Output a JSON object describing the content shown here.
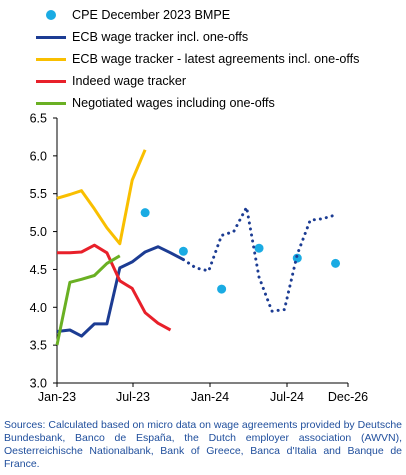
{
  "chart_data": {
    "type": "line",
    "title": "",
    "xlabel": "",
    "ylabel": "",
    "ylim": [
      3.0,
      6.5
    ],
    "yticks": [
      "3.0",
      "3.5",
      "4.0",
      "4.5",
      "5.0",
      "5.5",
      "6.0",
      "6.5"
    ],
    "xticks": [
      "Jan-23",
      "Jul-23",
      "Jan-24",
      "Jul-24",
      "Dec-26"
    ],
    "grid": false,
    "legend_position": "top",
    "series": [
      {
        "name": "CPE December 2023 BMPE",
        "style": "dots",
        "color": "#1aabe3",
        "points": [
          {
            "x": "2023-08",
            "y": 5.25
          },
          {
            "x": "2023-11",
            "y": 4.74
          },
          {
            "x": "2024-02",
            "y": 4.24
          },
          {
            "x": "2024-05",
            "y": 4.78
          },
          {
            "x": "2024-08",
            "y": 4.65
          },
          {
            "x": "2024-11",
            "y": 4.58
          }
        ]
      },
      {
        "name": "ECB wage tracker incl. one-offs",
        "style": "solid",
        "color": "#1c3c93",
        "points": [
          {
            "x": "2023-01",
            "y": 3.68
          },
          {
            "x": "2023-02",
            "y": 3.7
          },
          {
            "x": "2023-03",
            "y": 3.62
          },
          {
            "x": "2023-04",
            "y": 3.78
          },
          {
            "x": "2023-05",
            "y": 3.78
          },
          {
            "x": "2023-06",
            "y": 4.52
          },
          {
            "x": "2023-07",
            "y": 4.6
          },
          {
            "x": "2023-08",
            "y": 4.73
          },
          {
            "x": "2023-09",
            "y": 4.8
          },
          {
            "x": "2023-10",
            "y": 4.72
          },
          {
            "x": "2023-11",
            "y": 4.63
          }
        ]
      },
      {
        "name": "ECB wage tracker incl. one-offs (forward-looking)",
        "legend": false,
        "style": "dotted",
        "color": "#1c3c93",
        "points": [
          {
            "x": "2023-11",
            "y": 4.63
          },
          {
            "x": "2023-12",
            "y": 4.52
          },
          {
            "x": "2024-01",
            "y": 4.48
          },
          {
            "x": "2024-02",
            "y": 4.95
          },
          {
            "x": "2024-03",
            "y": 5.0
          },
          {
            "x": "2024-04",
            "y": 5.32
          },
          {
            "x": "2024-05",
            "y": 4.4
          },
          {
            "x": "2024-06",
            "y": 3.95
          },
          {
            "x": "2024-07",
            "y": 3.97
          },
          {
            "x": "2024-08",
            "y": 4.7
          },
          {
            "x": "2024-09",
            "y": 5.15
          },
          {
            "x": "2024-10",
            "y": 5.17
          },
          {
            "x": "2024-11",
            "y": 5.22
          }
        ]
      },
      {
        "name": "ECB wage tracker - latest agreements incl. one-offs",
        "style": "solid",
        "color": "#f9bf00",
        "points": [
          {
            "x": "2023-01",
            "y": 5.44
          },
          {
            "x": "2023-02",
            "y": 5.49
          },
          {
            "x": "2023-03",
            "y": 5.54
          },
          {
            "x": "2023-04",
            "y": 5.3
          },
          {
            "x": "2023-05",
            "y": 5.05
          },
          {
            "x": "2023-06",
            "y": 4.84
          },
          {
            "x": "2023-07",
            "y": 5.68
          },
          {
            "x": "2023-08",
            "y": 6.08
          }
        ]
      },
      {
        "name": "Indeed wage tracker",
        "style": "solid",
        "color": "#e8202a",
        "points": [
          {
            "x": "2023-01",
            "y": 4.72
          },
          {
            "x": "2023-02",
            "y": 4.72
          },
          {
            "x": "2023-03",
            "y": 4.73
          },
          {
            "x": "2023-04",
            "y": 4.82
          },
          {
            "x": "2023-05",
            "y": 4.72
          },
          {
            "x": "2023-06",
            "y": 4.35
          },
          {
            "x": "2023-07",
            "y": 4.25
          },
          {
            "x": "2023-08",
            "y": 3.93
          },
          {
            "x": "2023-09",
            "y": 3.79
          },
          {
            "x": "2023-10",
            "y": 3.7
          }
        ]
      },
      {
        "name": "Negotiated wages including one-offs",
        "style": "solid",
        "color": "#6ab023",
        "points": [
          {
            "x": "2023-01",
            "y": 3.5
          },
          {
            "x": "2023-02",
            "y": 4.33
          },
          {
            "x": "2023-03",
            "y": 4.37
          },
          {
            "x": "2023-04",
            "y": 4.42
          },
          {
            "x": "2023-05",
            "y": 4.58
          },
          {
            "x": "2023-06",
            "y": 4.68
          }
        ]
      }
    ]
  },
  "source_text": "Sources: Calculated based on micro data on wage agreements provided by Deutsche Bundesbank, Banco de España, the Dutch employer association (AWVN), Oesterreichische Nationalbank, Bank of Greece, Banca d'Italia and Banque de France."
}
